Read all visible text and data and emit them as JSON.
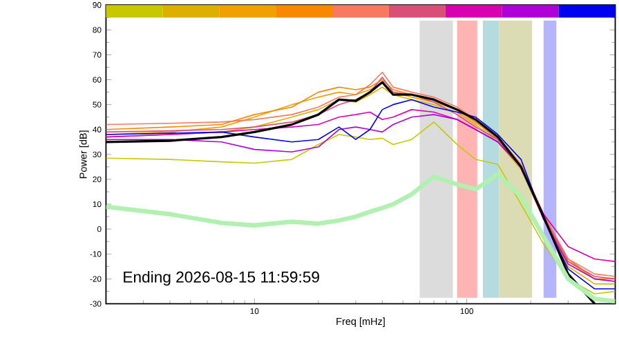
{
  "chart_data": {
    "type": "line",
    "xlabel": "Freq [mHz]",
    "ylabel": "Power [dB]",
    "log": "x",
    "xlim": [
      2,
      500
    ],
    "ylim": [
      -30,
      90
    ],
    "xticks": [
      10,
      100
    ],
    "yticks": [
      -30,
      -20,
      -10,
      0,
      10,
      20,
      30,
      40,
      50,
      60,
      70,
      80,
      90
    ],
    "grid": false,
    "marker": "none",
    "line_style": "solid",
    "x": [
      2,
      4,
      7,
      10,
      15,
      20,
      25,
      30,
      35,
      40,
      45,
      55,
      70,
      90,
      110,
      140,
      180,
      230,
      300,
      400,
      500
    ],
    "series": [
      {
        "color": "#c8c800",
        "values": [
          28.5,
          28,
          27,
          26.5,
          28,
          34,
          38,
          37,
          36,
          36.5,
          34,
          36,
          43,
          34,
          28,
          26,
          10,
          -6,
          -20,
          -26,
          -25
        ]
      },
      {
        "color": "#ddb000",
        "values": [
          37,
          38,
          39,
          41,
          45,
          48,
          52,
          51,
          54,
          57,
          54,
          52,
          50,
          47,
          42,
          35,
          24,
          4,
          -15,
          -22,
          -22
        ]
      },
      {
        "color": "#f0a000",
        "values": [
          38,
          39,
          41,
          45,
          50,
          53,
          55,
          54,
          56,
          59,
          55,
          53,
          51,
          48,
          43,
          37,
          26,
          6,
          -13,
          -20,
          -21
        ]
      },
      {
        "color": "#f88800",
        "values": [
          40,
          41,
          42,
          46,
          49,
          55,
          57,
          56,
          57,
          60,
          56,
          54,
          52,
          48,
          43,
          36,
          25,
          5,
          -12,
          -20,
          -20
        ]
      },
      {
        "color": "#f87860",
        "values": [
          42,
          42.5,
          43,
          44,
          46,
          49,
          53,
          54,
          58,
          63,
          57,
          55,
          53,
          49,
          44,
          37,
          26,
          6,
          -12,
          -18,
          -19
        ]
      },
      {
        "color": "#d85078",
        "values": [
          39,
          39.5,
          40,
          41,
          43,
          46,
          50,
          52,
          55,
          61,
          55,
          54,
          51,
          46,
          41,
          36,
          25,
          5,
          -13,
          -19,
          -20
        ]
      },
      {
        "color": "#d800b0",
        "values": [
          37,
          38,
          39,
          40,
          41,
          42,
          45,
          46,
          47,
          44,
          45,
          48,
          47,
          44,
          40,
          35,
          25,
          6,
          -7,
          -12,
          -13
        ]
      },
      {
        "color": "#b000d8",
        "values": [
          36,
          36,
          35,
          32,
          31,
          33,
          40,
          41,
          40,
          39,
          42,
          45,
          46,
          44,
          40,
          35,
          25,
          4,
          -14,
          -20,
          -21
        ]
      },
      {
        "color": "#0000f0",
        "values": [
          38,
          38.5,
          39,
          37,
          35,
          36,
          41,
          36,
          40,
          48,
          50,
          52,
          49,
          47,
          45,
          38,
          28,
          4,
          -16,
          -24,
          -24
        ]
      },
      {
        "color": "#000000",
        "values": [
          35,
          35.5,
          37,
          39,
          42,
          46,
          52,
          51.5,
          55,
          59,
          54,
          54,
          52,
          48,
          44,
          37,
          25,
          5,
          -18,
          -30,
          null
        ]
      },
      {
        "color": "#b0f0b0",
        "values": [
          9,
          6,
          2.5,
          1.5,
          3,
          2.2,
          3.5,
          5,
          7,
          8.5,
          10,
          14,
          21,
          18,
          16,
          22,
          13,
          -3,
          -20,
          -28,
          -29
        ]
      }
    ],
    "bands": [
      {
        "axis": "x",
        "from": 60,
        "to": 86,
        "color": "#dcdcdc"
      },
      {
        "axis": "x",
        "from": 90,
        "to": 112,
        "color": "#ffb4b4"
      },
      {
        "axis": "x",
        "from": 119,
        "to": 142,
        "color": "#b4dce0"
      },
      {
        "axis": "x",
        "from": 142,
        "to": 203,
        "color": "#dcdcb4"
      },
      {
        "axis": "x",
        "from": 230,
        "to": 264,
        "color": "#b4b4ff"
      }
    ],
    "annotations": [
      "Ending 2026-08-15 11:59:59"
    ]
  }
}
